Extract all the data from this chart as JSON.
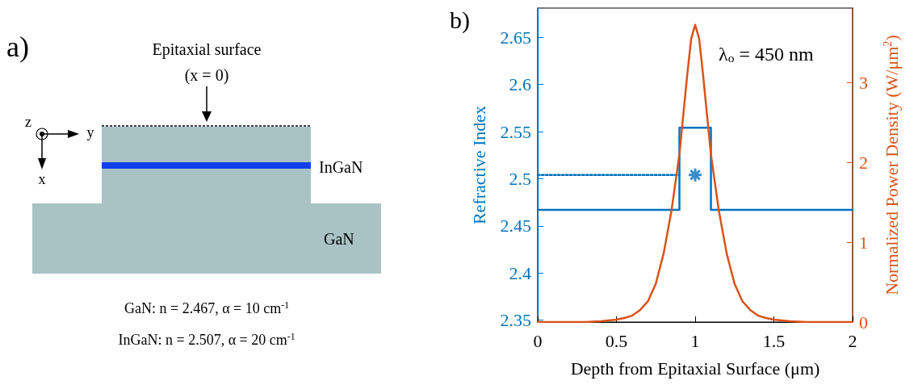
{
  "chart_data": [
    {
      "type": "other",
      "title": "a)",
      "annotations": [
        "Epitaxial surface",
        "(x = 0)",
        "z",
        "y",
        "x",
        "InGaN",
        "GaN",
        "GaN: n = 2.467, α = 10 cm$^{-1}$",
        "InGaN: n = 2.507, α = 20 cm$^{-1}$"
      ]
    },
    {
      "type": "line",
      "title": "b)",
      "xlabel": "Depth from Epitaxial Surface (μm)",
      "ylabel": "Refractive Index",
      "y2label": "Normalized Power Density (W/μm$^{2}$)",
      "annotations": [
        "λ$_{o}$ = 450 nm"
      ],
      "xlim": [
        0,
        2
      ],
      "xticks": [
        0,
        0.5,
        1,
        1.5,
        2
      ],
      "ylim": [
        2.348,
        2.681
      ],
      "yticks": [
        2.35,
        2.4,
        2.45,
        2.5,
        2.55,
        2.6,
        2.65
      ],
      "y2lim": [
        0,
        3.93
      ],
      "y2ticks": [
        0,
        1,
        2,
        3
      ],
      "grid": false,
      "marker": "none",
      "line_style": "solid",
      "series": [
        {
          "type": "line",
          "color": "#0072bd",
          "x": [
            0,
            0.9,
            0.9,
            1.1,
            1.1,
            2
          ],
          "values": [
            2.467,
            2.467,
            2.554,
            2.554,
            2.467,
            2.467
          ]
        },
        {
          "type": "line",
          "color": "#0072bd",
          "line_style": "dotted",
          "x": [
            0,
            0.9
          ],
          "values": [
            2.504,
            2.504
          ]
        },
        {
          "type": "scatter",
          "color": "#0072bd",
          "marker": "cross",
          "x": [
            1
          ],
          "values": [
            2.504
          ]
        },
        {
          "type": "line",
          "color": "#d95319",
          "axis": "y2",
          "x": [
            0,
            0.3,
            0.4,
            0.5,
            0.55,
            0.6,
            0.65,
            0.7,
            0.75,
            0.8,
            0.85,
            0.9,
            0.95,
            0.975,
            1,
            1.025,
            1.05,
            1.1,
            1.15,
            1.2,
            1.25,
            1.3,
            1.35,
            1.4,
            1.45,
            1.5,
            1.6,
            1.7,
            2
          ],
          "values": [
            0,
            0,
            0.01,
            0.03,
            0.05,
            0.08,
            0.15,
            0.26,
            0.48,
            0.86,
            1.4,
            2.1,
            3.1,
            3.55,
            3.72,
            3.55,
            3.1,
            2.1,
            1.4,
            0.86,
            0.48,
            0.26,
            0.15,
            0.08,
            0.05,
            0.03,
            0.01,
            0,
            0
          ]
        }
      ]
    }
  ]
}
